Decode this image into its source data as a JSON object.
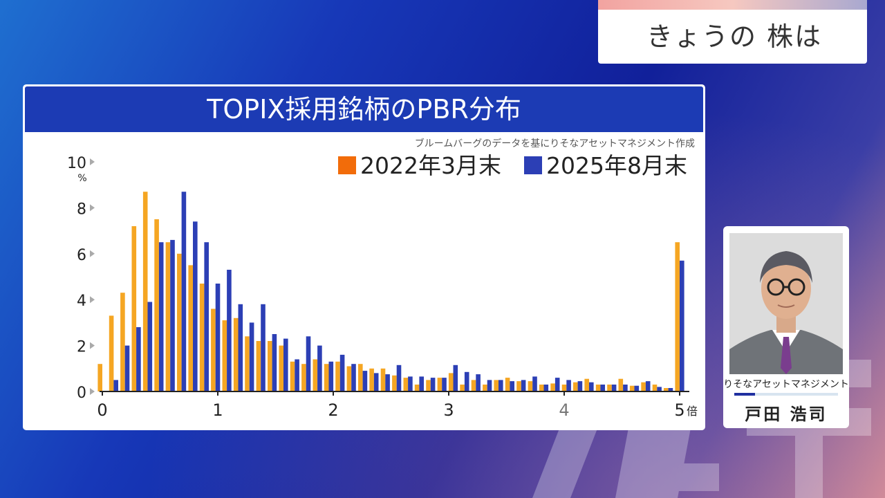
{
  "corner_card": {
    "title": "きょうの 株は"
  },
  "panel": {
    "title": "TOPIX採用銘柄のPBR分布"
  },
  "chart_data": {
    "type": "bar",
    "title": "TOPIX採用銘柄のPBR分布",
    "source_note": "ブルームバーグのデータを基にりそなアセットマネジメント作成",
    "y_unit": "%",
    "x_unit": "倍",
    "ylim": [
      0,
      10
    ],
    "xlim": [
      0,
      5
    ],
    "y_ticks": [
      0,
      2,
      4,
      6,
      8,
      10
    ],
    "y_tick_labels": [
      "0",
      "2",
      "4",
      "6",
      "8",
      "10"
    ],
    "x_ticks": [
      0,
      1,
      2,
      3,
      4,
      5
    ],
    "x_tick_labels": [
      "0",
      "1",
      "2",
      "3",
      "4",
      "5"
    ],
    "grid": false,
    "legend_position": "top-right",
    "series": [
      {
        "name": "2022年3月末",
        "color": "#f5a623",
        "values": [
          1.2,
          3.3,
          4.3,
          7.2,
          8.7,
          7.5,
          6.5,
          6.0,
          5.5,
          4.7,
          3.6,
          3.1,
          3.2,
          2.4,
          2.2,
          2.2,
          2.0,
          1.3,
          1.2,
          1.4,
          1.2,
          1.3,
          1.1,
          1.2,
          1.0,
          1.0,
          0.7,
          0.6,
          0.3,
          0.5,
          0.6,
          0.8,
          0.3,
          0.5,
          0.3,
          0.5,
          0.6,
          0.45,
          0.45,
          0.3,
          0.35,
          0.3,
          0.4,
          0.55,
          0.3,
          0.3,
          0.55,
          0.25,
          0.4,
          0.3,
          0.15,
          6.5
        ]
      },
      {
        "name": "2025年8月末",
        "color": "#2c3fb5",
        "values": [
          0.0,
          0.5,
          2.0,
          2.8,
          3.9,
          6.5,
          6.6,
          8.7,
          7.4,
          6.5,
          4.7,
          5.3,
          3.8,
          3.0,
          3.8,
          2.5,
          2.3,
          1.4,
          2.4,
          2.0,
          1.3,
          1.6,
          1.2,
          0.9,
          0.8,
          0.75,
          1.15,
          0.65,
          0.65,
          0.6,
          0.6,
          1.15,
          0.85,
          0.75,
          0.5,
          0.5,
          0.45,
          0.5,
          0.65,
          0.3,
          0.6,
          0.5,
          0.45,
          0.4,
          0.3,
          0.3,
          0.3,
          0.25,
          0.45,
          0.2,
          0.15,
          5.7
        ]
      }
    ],
    "legend_swatch_colors": [
      "#f26c0a",
      "#2c3fb5"
    ]
  },
  "profile": {
    "company": "りそなアセットマネジメント",
    "name": "戸田 浩司"
  },
  "watermark": {
    "text": "テレ東"
  }
}
